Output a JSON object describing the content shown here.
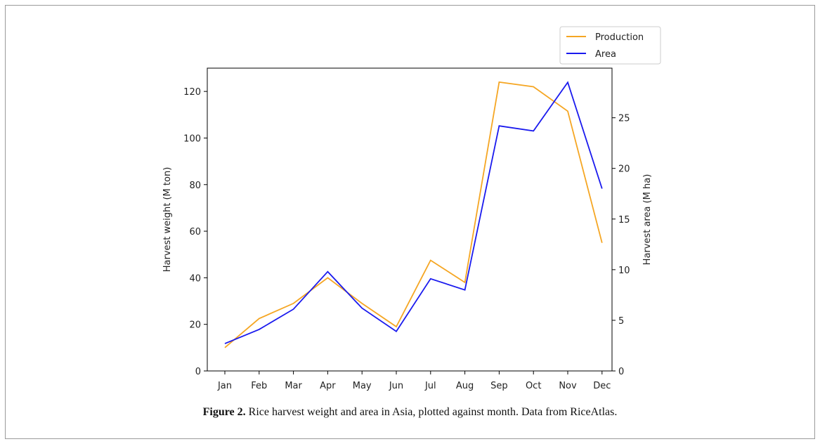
{
  "figure": {
    "caption_label": "Figure 2.",
    "caption_text": " Rice harvest weight and area in Asia, plotted against month. Data from RiceAtlas."
  },
  "chart_data": {
    "type": "line",
    "categories": [
      "Jan",
      "Feb",
      "Mar",
      "Apr",
      "May",
      "Jun",
      "Jul",
      "Aug",
      "Sep",
      "Oct",
      "Nov",
      "Dec"
    ],
    "series": [
      {
        "name": "Production",
        "axis": "left",
        "color": "#f5a623",
        "values": [
          10,
          22.5,
          29,
          40,
          29,
          19,
          47.5,
          38,
          124,
          122,
          111.5,
          55
        ]
      },
      {
        "name": "Area",
        "axis": "right",
        "color": "#1a1aee",
        "values": [
          2.7,
          4.1,
          6.1,
          9.8,
          6.2,
          3.9,
          9.1,
          8.0,
          24.2,
          23.7,
          28.5,
          18.0
        ]
      }
    ],
    "ylabel": "Harvest weight (M ton)",
    "ylabel_right": "Harvest area (M ha)",
    "ylim": [
      0,
      130
    ],
    "ylim_right": [
      0,
      29.9
    ],
    "yticks": [
      0,
      20,
      40,
      60,
      80,
      100,
      120
    ],
    "yticks_right": [
      0,
      5,
      10,
      15,
      20,
      25
    ],
    "grid": false,
    "legend_position": "top-right, outside plot"
  }
}
